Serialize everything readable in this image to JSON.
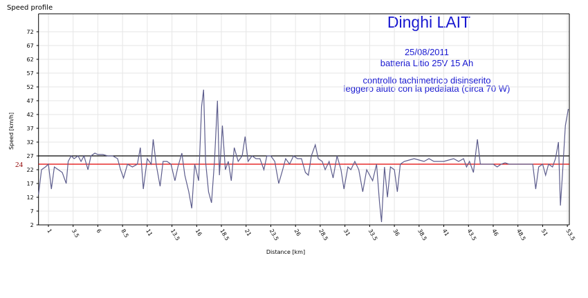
{
  "chart_data": {
    "type": "line",
    "title": "Speed profile",
    "y_label": "Speed [km/h]",
    "x_label": "Distance [km]",
    "annotations": [
      "Dinghi LAIT",
      "25/08/2011",
      "batteria Litio 25V 15 Ah",
      "controllo tachimetrico disinserito",
      "leggero aiuto con la pedalata (circa 70 W)"
    ],
    "color": "#5c5c8c",
    "grid": true,
    "xlim": [
      0,
      53.7
    ],
    "ylim": [
      2,
      78.5
    ],
    "xticks": [
      1,
      3.5,
      6,
      8.5,
      11,
      13.5,
      16,
      18.5,
      21,
      23.5,
      26,
      28.5,
      31,
      33.5,
      36,
      38.5,
      41,
      43.5,
      46,
      48.5,
      51,
      53.5
    ],
    "yticks": [
      2,
      7,
      12,
      17,
      22,
      27,
      32,
      37,
      42,
      47,
      52,
      57,
      62,
      67,
      72
    ],
    "reference_lines": [
      {
        "value": 27,
        "color": "#000000"
      },
      {
        "value": 24,
        "color": "#e00000"
      }
    ],
    "x": [
      0,
      0.3,
      0.7,
      1.0,
      1.3,
      1.6,
      2.0,
      2.4,
      2.8,
      3.0,
      3.3,
      3.6,
      4.0,
      4.3,
      4.6,
      5.0,
      5.3,
      5.7,
      6.0,
      6.5,
      7.0,
      7.5,
      8.0,
      8.3,
      8.6,
      9.0,
      9.5,
      10.0,
      10.3,
      10.6,
      11.0,
      11.4,
      11.6,
      11.9,
      12.3,
      12.6,
      13.0,
      13.4,
      13.8,
      14.1,
      14.5,
      14.8,
      15.2,
      15.5,
      15.8,
      16.2,
      16.5,
      16.7,
      16.9,
      17.2,
      17.5,
      17.8,
      18.1,
      18.3,
      18.6,
      18.9,
      19.2,
      19.5,
      19.8,
      20.2,
      20.6,
      20.9,
      21.2,
      21.6,
      22.0,
      22.4,
      22.8,
      23.1,
      23.5,
      23.9,
      24.3,
      24.7,
      25.0,
      25.4,
      25.8,
      26.2,
      26.6,
      27.0,
      27.3,
      27.6,
      28.0,
      28.3,
      28.7,
      29.0,
      29.4,
      29.8,
      30.2,
      30.6,
      30.9,
      31.3,
      31.6,
      32.0,
      32.4,
      32.8,
      33.2,
      33.5,
      33.8,
      34.2,
      34.5,
      34.7,
      35.0,
      35.3,
      35.6,
      36.0,
      36.3,
      36.6,
      37.0,
      37.5,
      38.0,
      38.5,
      39.0,
      39.5,
      40.0,
      40.5,
      41.0,
      41.5,
      42.0,
      42.5,
      43.0,
      43.3,
      43.6,
      44.0,
      44.4,
      44.7,
      45.0,
      45.5,
      46.0,
      46.4,
      46.8,
      47.2,
      47.6,
      48.0,
      48.5,
      49.0,
      49.5,
      50.0,
      50.3,
      50.6,
      51.0,
      51.3,
      51.6,
      52.0,
      52.3,
      52.6,
      52.8,
      53.0,
      53.3,
      53.6
    ],
    "values": [
      13,
      22,
      23,
      24,
      15,
      23,
      22,
      21,
      17,
      25,
      27,
      26,
      27,
      25,
      27,
      22,
      27,
      28,
      27.5,
      27.5,
      27,
      27,
      26,
      22,
      19,
      24,
      23,
      24,
      30,
      15,
      26,
      24,
      33,
      24,
      16,
      25,
      25,
      24,
      18,
      23,
      28,
      20,
      14,
      8,
      24,
      18,
      45,
      51,
      25,
      14,
      10,
      25,
      47,
      20,
      38,
      22,
      25,
      18,
      30,
      25,
      27,
      34,
      25,
      27,
      26,
      26,
      22,
      27,
      27,
      25,
      17,
      22,
      26,
      24,
      27,
      26,
      26,
      21,
      20,
      27,
      31,
      26,
      25,
      22,
      25,
      19,
      27,
      22,
      15,
      23,
      22,
      25,
      22,
      14,
      22,
      20,
      18,
      24,
      10,
      3,
      23,
      12,
      23,
      22,
      14,
      24,
      25,
      25.5,
      26,
      25.5,
      25,
      26,
      25,
      25,
      25,
      25.5,
      26,
      25,
      26,
      23,
      25,
      21,
      33,
      24,
      24,
      24,
      24,
      23,
      24,
      24.5,
      24,
      24,
      24,
      24,
      24,
      24,
      15,
      23,
      24,
      20,
      24,
      23,
      26,
      32,
      9,
      20,
      38,
      44
    ]
  }
}
